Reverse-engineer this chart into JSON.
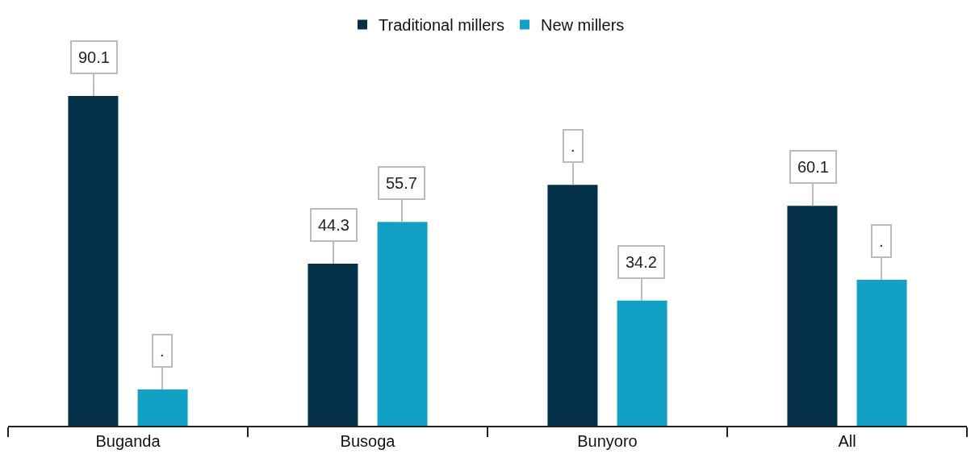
{
  "chart_data": {
    "type": "bar",
    "categories": [
      "Buganda",
      "Busoga",
      "Bunyoro",
      "All"
    ],
    "series": [
      {
        "name": "Traditional millers",
        "color": "#04304a",
        "values": [
          90.1,
          44.3,
          65.8,
          60.1
        ],
        "value_labels": [
          "90.1",
          "44.3",
          ".",
          "60.1"
        ]
      },
      {
        "name": "New millers",
        "color": "#12a0c4",
        "values": [
          9.9,
          55.7,
          34.2,
          39.9
        ],
        "value_labels": [
          ".",
          "55.7",
          "34.2",
          "."
        ]
      }
    ],
    "legend": "top"
  }
}
